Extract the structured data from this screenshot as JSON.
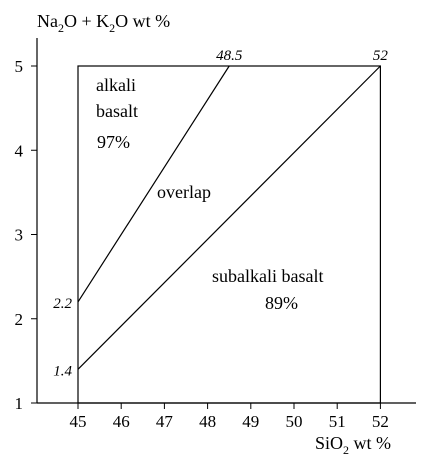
{
  "chart_data": {
    "type": "line",
    "title": "",
    "ylabel": "Na2O + K2O wt %",
    "xlabel": "SiO2 wt %",
    "xlim": [
      44.1,
      53.2
    ],
    "ylim": [
      1,
      5.4
    ],
    "x_ticks": [
      "45",
      "46",
      "47",
      "48",
      "49",
      "50",
      "51",
      "52"
    ],
    "y_ticks": [
      "1",
      "2",
      "3",
      "4",
      "5"
    ],
    "grid": false,
    "region_box": {
      "x": [
        45,
        52
      ],
      "y": [
        1,
        5
      ]
    },
    "series": [
      {
        "x": [
          45,
          48.5
        ],
        "y": [
          2.2,
          5
        ]
      },
      {
        "x": [
          45,
          52
        ],
        "y": [
          1.4,
          5
        ]
      }
    ],
    "point_labels": [
      {
        "text": "2.2",
        "x": 45,
        "y": 2.2
      },
      {
        "text": "1.4",
        "x": 45,
        "y": 1.4
      },
      {
        "text": "48.5",
        "x": 48.5,
        "y": 5
      },
      {
        "text": "52",
        "x": 52,
        "y": 5
      }
    ],
    "region_labels": {
      "alkali_line1": "alkali",
      "alkali_line2": "basalt",
      "alkali_pct": "97%",
      "overlap": "overlap",
      "subalkali": "subalkali basalt",
      "subalkali_pct": "89%"
    }
  }
}
